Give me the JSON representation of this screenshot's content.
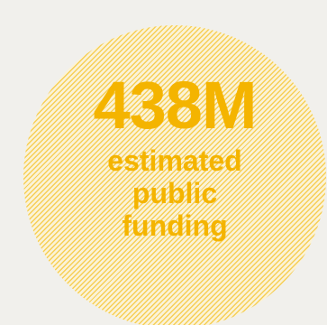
{
  "stat": {
    "value": "438M",
    "label_lines": [
      "estimated",
      "public",
      "funding"
    ]
  },
  "colors": {
    "accent": "#f4b400",
    "hatch": "#f6cf57",
    "background": "#f1f0ec"
  }
}
